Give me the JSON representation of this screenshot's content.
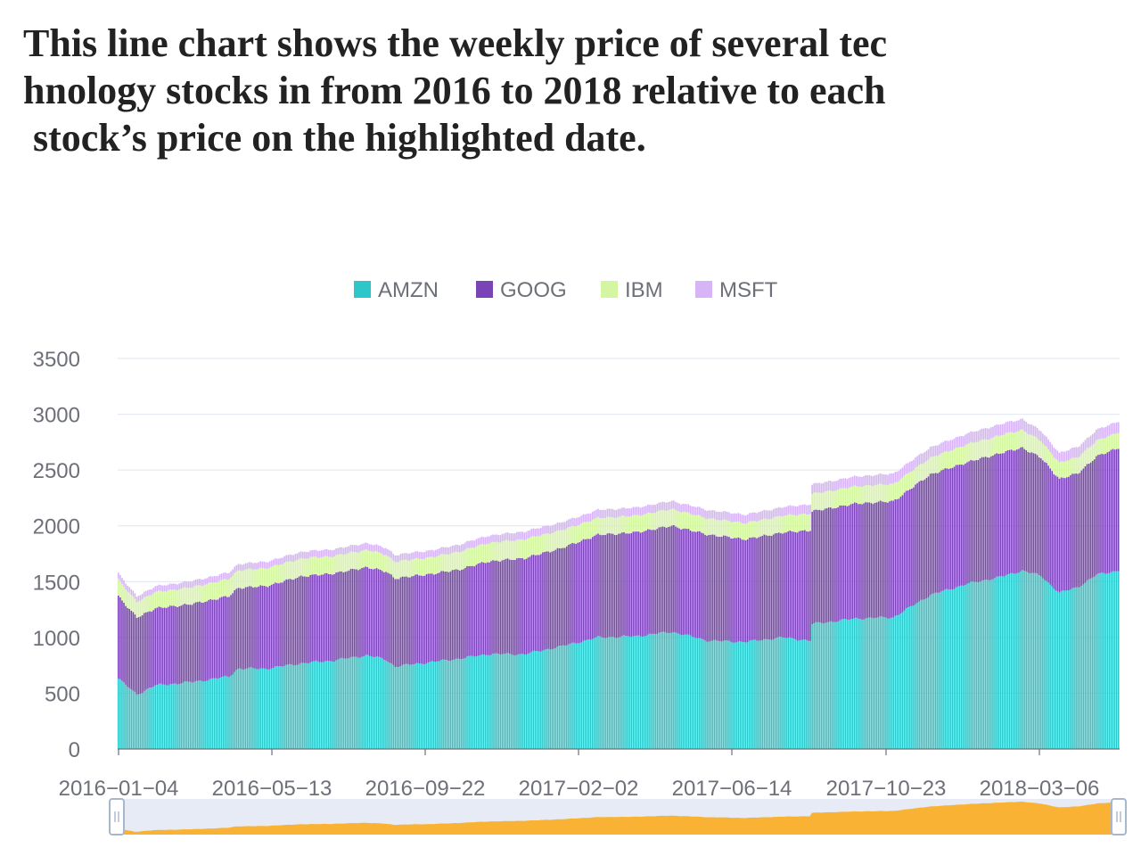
{
  "title_lines": [
    "This line chart shows the weekly price of several tec",
    "hnology stocks in from 2016 to 2018 relative to each",
    " stock’s price on the highlighted date."
  ],
  "chart_data": {
    "type": "bar",
    "stacked": true,
    "legend_position": "top-center",
    "grid": true,
    "ylim": [
      0,
      3500
    ],
    "y_ticks": [
      "0",
      "500",
      "1000",
      "1500",
      "2000",
      "2500",
      "3000",
      "3500"
    ],
    "x_tick_labels": [
      "2016−01−04",
      "2016−05−13",
      "2016−09−22",
      "2017−02−02",
      "2017−06−14",
      "2017−10−23",
      "2018−03−06"
    ],
    "x_start": "2016-01-04",
    "x_end": "2018-05-31",
    "series": [
      {
        "name": "AMZN",
        "color": "#2ec7c9",
        "anchors": [
          [
            0,
            630
          ],
          [
            5,
            560
          ],
          [
            10,
            490
          ],
          [
            20,
            570
          ],
          [
            40,
            600
          ],
          [
            60,
            650
          ],
          [
            65,
            720
          ],
          [
            80,
            720
          ],
          [
            100,
            770
          ],
          [
            115,
            790
          ],
          [
            135,
            840
          ],
          [
            145,
            800
          ],
          [
            150,
            740
          ],
          [
            170,
            780
          ],
          [
            185,
            810
          ],
          [
            200,
            850
          ],
          [
            220,
            850
          ],
          [
            240,
            920
          ],
          [
            260,
            1000
          ],
          [
            280,
            1010
          ],
          [
            300,
            1050
          ],
          [
            320,
            970
          ],
          [
            340,
            960
          ],
          [
            360,
            1000
          ],
          [
            375,
            970
          ],
          [
            376,
            1120
          ],
          [
            400,
            1170
          ],
          [
            420,
            1180
          ],
          [
            440,
            1380
          ],
          [
            460,
            1480
          ],
          [
            480,
            1550
          ],
          [
            490,
            1600
          ],
          [
            500,
            1550
          ],
          [
            510,
            1400
          ],
          [
            520,
            1450
          ],
          [
            530,
            1560
          ],
          [
            542,
            1600
          ]
        ]
      },
      {
        "name": "GOOG",
        "color": "#7b44b6",
        "anchors": [
          [
            0,
            740
          ],
          [
            5,
            710
          ],
          [
            10,
            690
          ],
          [
            20,
            690
          ],
          [
            40,
            700
          ],
          [
            60,
            720
          ],
          [
            80,
            740
          ],
          [
            100,
            780
          ],
          [
            115,
            780
          ],
          [
            135,
            790
          ],
          [
            145,
            790
          ],
          [
            150,
            790
          ],
          [
            170,
            790
          ],
          [
            185,
            800
          ],
          [
            200,
            830
          ],
          [
            220,
            860
          ],
          [
            240,
            880
          ],
          [
            260,
            920
          ],
          [
            280,
            930
          ],
          [
            300,
            950
          ],
          [
            320,
            950
          ],
          [
            340,
            920
          ],
          [
            360,
            940
          ],
          [
            375,
            990
          ],
          [
            376,
            1010
          ],
          [
            400,
            1030
          ],
          [
            420,
            1040
          ],
          [
            440,
            1080
          ],
          [
            460,
            1090
          ],
          [
            480,
            1110
          ],
          [
            490,
            1100
          ],
          [
            500,
            1060
          ],
          [
            510,
            1020
          ],
          [
            520,
            1020
          ],
          [
            530,
            1060
          ],
          [
            542,
            1100
          ]
        ]
      },
      {
        "name": "IBM",
        "color": "#d4f5a1",
        "anchors": [
          [
            0,
            150
          ],
          [
            5,
            145
          ],
          [
            10,
            140
          ],
          [
            20,
            145
          ],
          [
            40,
            150
          ],
          [
            60,
            155
          ],
          [
            80,
            160
          ],
          [
            100,
            160
          ],
          [
            115,
            155
          ],
          [
            135,
            155
          ],
          [
            145,
            150
          ],
          [
            150,
            150
          ],
          [
            170,
            150
          ],
          [
            185,
            160
          ],
          [
            200,
            165
          ],
          [
            220,
            170
          ],
          [
            240,
            160
          ],
          [
            260,
            150
          ],
          [
            280,
            150
          ],
          [
            300,
            150
          ],
          [
            320,
            145
          ],
          [
            340,
            145
          ],
          [
            360,
            150
          ],
          [
            375,
            150
          ],
          [
            376,
            155
          ],
          [
            400,
            155
          ],
          [
            420,
            155
          ],
          [
            440,
            150
          ],
          [
            460,
            160
          ],
          [
            480,
            160
          ],
          [
            490,
            160
          ],
          [
            500,
            150
          ],
          [
            510,
            145
          ],
          [
            520,
            145
          ],
          [
            530,
            140
          ],
          [
            542,
            140
          ]
        ]
      },
      {
        "name": "MSFT",
        "color": "#d6b4f5",
        "anchors": [
          [
            0,
            55
          ],
          [
            5,
            52
          ],
          [
            10,
            50
          ],
          [
            20,
            52
          ],
          [
            40,
            55
          ],
          [
            60,
            57
          ],
          [
            80,
            58
          ],
          [
            100,
            60
          ],
          [
            115,
            62
          ],
          [
            135,
            62
          ],
          [
            145,
            61
          ],
          [
            150,
            60
          ],
          [
            170,
            62
          ],
          [
            185,
            64
          ],
          [
            200,
            66
          ],
          [
            220,
            69
          ],
          [
            240,
            70
          ],
          [
            260,
            73
          ],
          [
            280,
            72
          ],
          [
            300,
            73
          ],
          [
            320,
            75
          ],
          [
            340,
            76
          ],
          [
            360,
            78
          ],
          [
            375,
            84
          ],
          [
            376,
            85
          ],
          [
            400,
            88
          ],
          [
            420,
            93
          ],
          [
            440,
            93
          ],
          [
            460,
            97
          ],
          [
            480,
            100
          ],
          [
            490,
            97
          ],
          [
            500,
            90
          ],
          [
            510,
            88
          ],
          [
            520,
            93
          ],
          [
            530,
            97
          ],
          [
            542,
            98
          ]
        ]
      }
    ]
  },
  "data_zoom": {
    "start_percent": 0,
    "end_percent": 100,
    "fill_color": "#f9b233",
    "background_color": "#e6ebf5"
  }
}
